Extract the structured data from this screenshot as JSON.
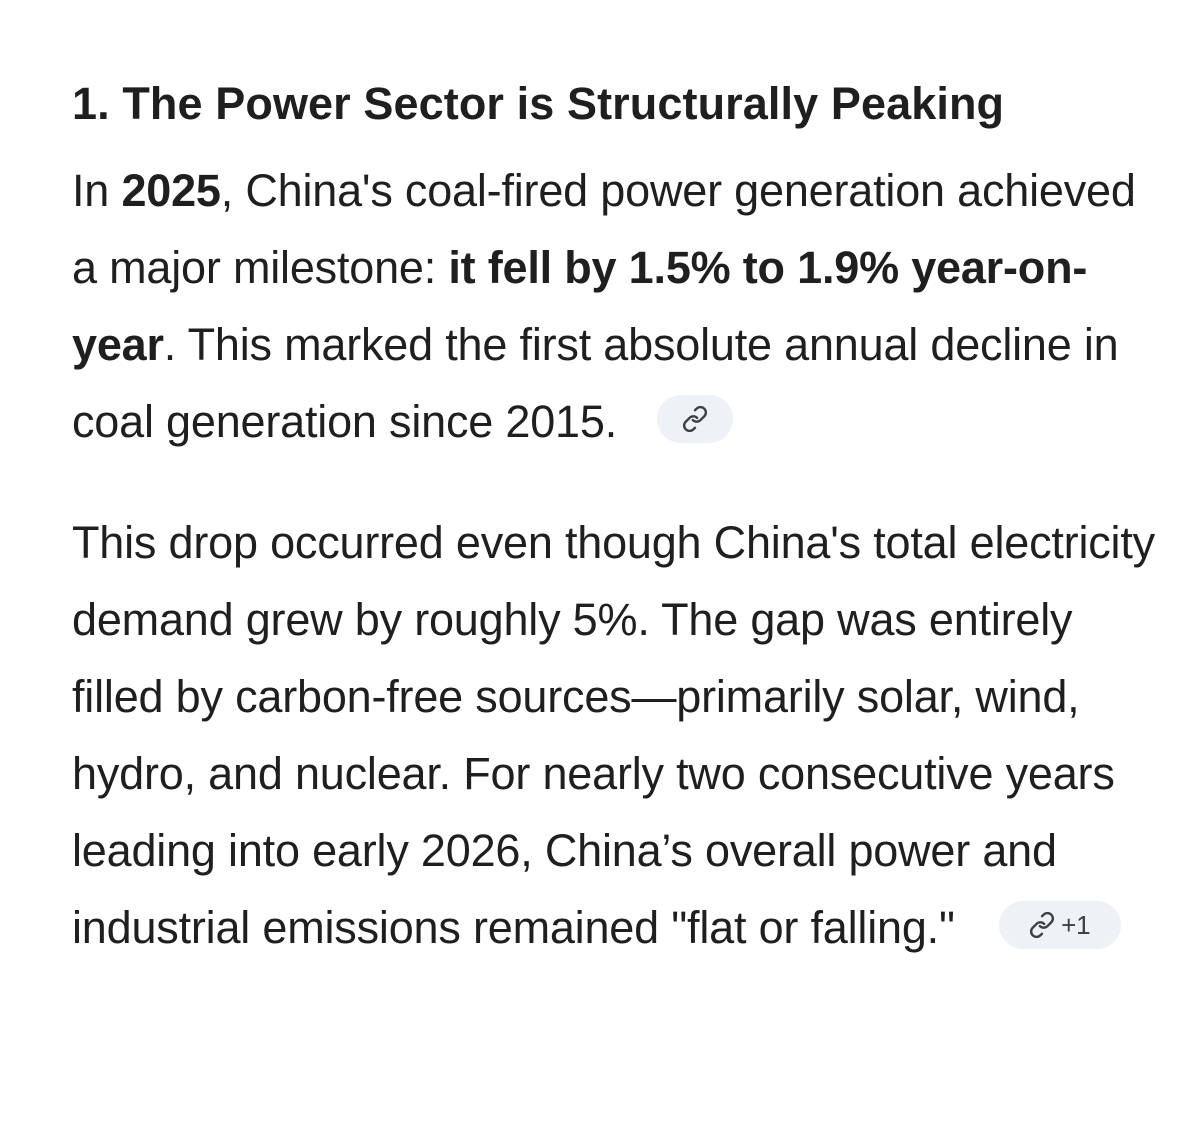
{
  "section": {
    "heading": "1. The Power Sector is Structurally Peaking"
  },
  "paragraph1": {
    "t1": "In ",
    "b1": "2025",
    "t2": ", China's coal-fired power generation achieved a major milestone: ",
    "b2": "it fell by 1.5% to 1.9% year-on-year",
    "t3": ". This marked the first absolute annual decline in coal generation since 2015.",
    "citation": {
      "icon": "link-icon"
    }
  },
  "paragraph2": {
    "text": "This drop occurred even though China's total electricity demand grew by roughly 5%. The gap was entirely filled by carbon-free sources—primarily solar, wind, hydro, and nuclear. For nearly two consecutive years leading into early 2026, China’s overall power and industrial emissions remained \"flat or falling.\"",
    "citation": {
      "icon": "link-icon",
      "count": "+1"
    }
  }
}
